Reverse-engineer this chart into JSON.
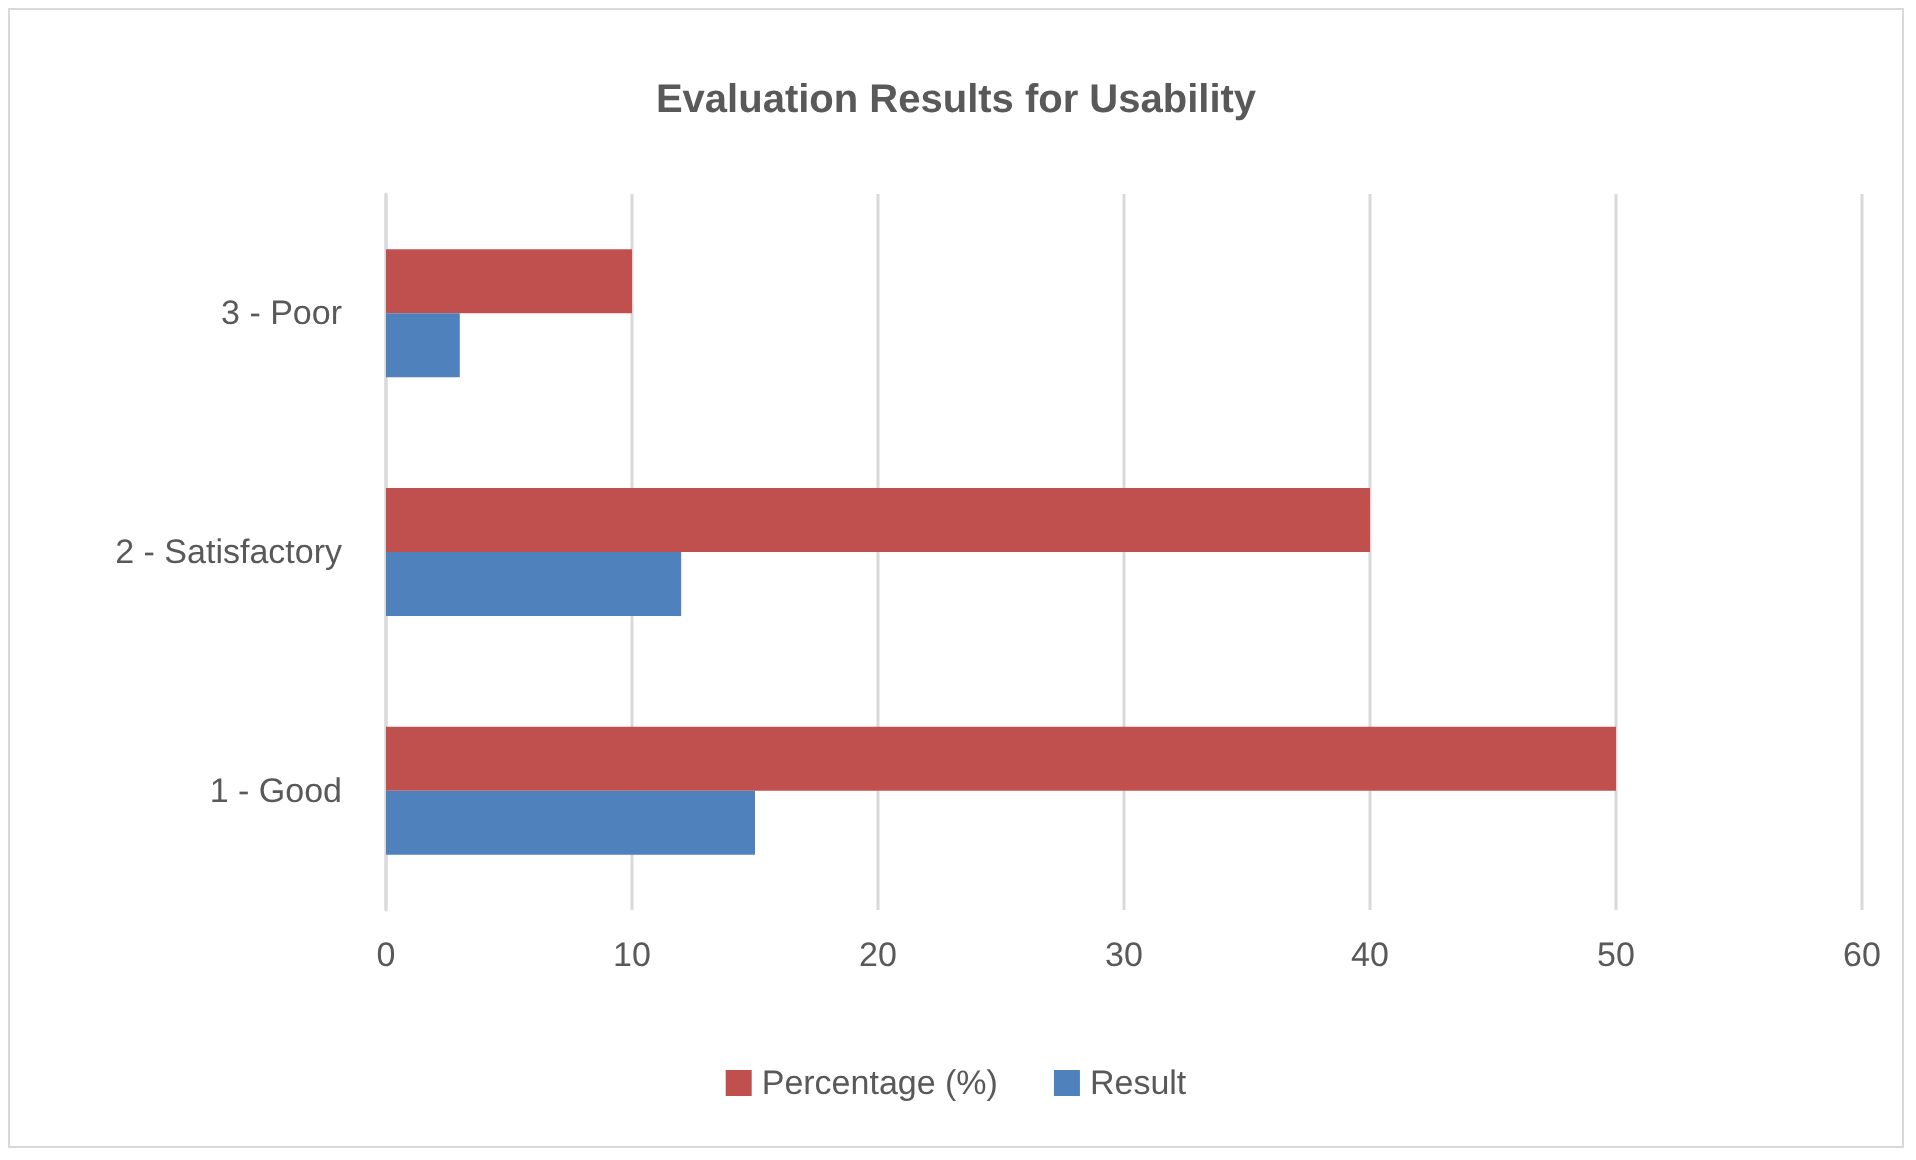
{
  "chart_data": {
    "type": "bar",
    "title": "Evaluation Results for Usability",
    "orientation": "horizontal",
    "categories": [
      "3 - Poor",
      "2 - Satisfactory",
      "1 - Good"
    ],
    "series": [
      {
        "name": "Percentage (%)",
        "color": "#c0504d",
        "values": [
          10,
          40,
          50
        ]
      },
      {
        "name": "Result",
        "color": "#4f81bd",
        "values": [
          3,
          12,
          15
        ]
      }
    ],
    "xlim": [
      0,
      60
    ],
    "xticks": [
      0,
      10,
      20,
      30,
      40,
      50,
      60
    ],
    "grid": "x",
    "legend": "bottom"
  }
}
